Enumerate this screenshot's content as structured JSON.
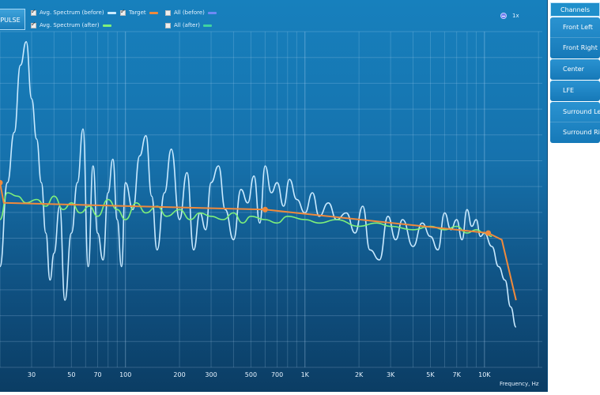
{
  "toolbar": {
    "impulse_label": "PULSE"
  },
  "legend": [
    {
      "label": "Avg. Spectrum (before)",
      "checked": true,
      "color": "#c9eaff"
    },
    {
      "label": "Target",
      "checked": true,
      "color": "#f08a3c"
    },
    {
      "label": "All (before)",
      "checked": false,
      "color": "#6f8af5"
    },
    {
      "label": "Avg. Spectrum (after)",
      "checked": true,
      "color": "#7ef07a"
    },
    {
      "label": "All (after)",
      "checked": false,
      "color": "#3fd3a0"
    }
  ],
  "zoom": {
    "label": "1x"
  },
  "channels": {
    "header": "Channels",
    "groups": [
      [
        "Front Left",
        "Front Right"
      ],
      [
        "Center"
      ],
      [
        "LFE"
      ],
      [
        "Surround Left",
        "Surround Right"
      ]
    ]
  },
  "chart_data": {
    "type": "line",
    "xlabel": "Frequency, Hz",
    "x_scale": "log",
    "xlim": [
      20,
      21000
    ],
    "x_ticks": [
      "30",
      "50",
      "70",
      "100",
      "200",
      "300",
      "500",
      "700",
      "1K",
      "2K",
      "3K",
      "5K",
      "7K",
      "10K"
    ],
    "x_tick_values": [
      30,
      50,
      70,
      100,
      200,
      300,
      500,
      700,
      1000,
      2000,
      3000,
      5000,
      7000,
      10000
    ],
    "ylim": [
      0,
      1
    ],
    "grid": true,
    "series": [
      {
        "name": "Target",
        "color": "#f08a3c",
        "x": [
          20,
          21,
          600,
          10500,
          12500,
          15000
        ],
        "y": [
          0.55,
          0.49,
          0.47,
          0.4,
          0.38,
          0.2
        ]
      },
      {
        "name": "Avg. Spectrum (after)",
        "color": "#7ef07a",
        "x": [
          20,
          22,
          25,
          28,
          32,
          36,
          40,
          45,
          50,
          56,
          63,
          70,
          80,
          90,
          100,
          115,
          130,
          150,
          170,
          200,
          230,
          260,
          300,
          350,
          400,
          450,
          500,
          600,
          700,
          800,
          1000,
          1200,
          1500,
          2000,
          2500,
          3000,
          4000,
          5000,
          6000,
          7000,
          8000,
          9000,
          10000,
          11000
        ],
        "y": [
          0.44,
          0.52,
          0.51,
          0.49,
          0.5,
          0.48,
          0.51,
          0.47,
          0.49,
          0.46,
          0.48,
          0.45,
          0.5,
          0.47,
          0.44,
          0.49,
          0.46,
          0.48,
          0.45,
          0.47,
          0.44,
          0.46,
          0.45,
          0.44,
          0.46,
          0.43,
          0.45,
          0.44,
          0.43,
          0.45,
          0.44,
          0.43,
          0.44,
          0.42,
          0.43,
          0.42,
          0.41,
          0.42,
          0.41,
          0.42,
          0.4,
          0.41,
          0.4,
          0.39
        ]
      },
      {
        "name": "Avg. Spectrum (before)",
        "color": "#c9eaff",
        "x": [
          20,
          22,
          24,
          26,
          28,
          30,
          32,
          34,
          36,
          38,
          40,
          43,
          46,
          50,
          54,
          58,
          62,
          66,
          70,
          75,
          80,
          85,
          90,
          95,
          100,
          110,
          120,
          130,
          140,
          150,
          165,
          180,
          200,
          220,
          240,
          260,
          280,
          300,
          330,
          360,
          400,
          440,
          480,
          520,
          560,
          600,
          650,
          700,
          760,
          820,
          900,
          1000,
          1100,
          1200,
          1350,
          1500,
          1700,
          1900,
          2100,
          2300,
          2600,
          2900,
          3200,
          3500,
          4000,
          4500,
          5000,
          5500,
          6000,
          6500,
          7000,
          7500,
          8000,
          8500,
          9000,
          9500,
          10000,
          11000,
          12000,
          13000,
          14000,
          15000
        ],
        "y": [
          0.3,
          0.55,
          0.7,
          0.9,
          0.97,
          0.8,
          0.68,
          0.55,
          0.4,
          0.26,
          0.34,
          0.48,
          0.2,
          0.4,
          0.55,
          0.71,
          0.3,
          0.6,
          0.4,
          0.32,
          0.52,
          0.62,
          0.44,
          0.3,
          0.55,
          0.47,
          0.63,
          0.69,
          0.51,
          0.35,
          0.52,
          0.65,
          0.44,
          0.58,
          0.35,
          0.46,
          0.41,
          0.55,
          0.6,
          0.47,
          0.38,
          0.53,
          0.49,
          0.57,
          0.43,
          0.6,
          0.52,
          0.55,
          0.48,
          0.56,
          0.5,
          0.46,
          0.52,
          0.45,
          0.49,
          0.44,
          0.46,
          0.4,
          0.48,
          0.35,
          0.32,
          0.45,
          0.38,
          0.44,
          0.36,
          0.43,
          0.39,
          0.35,
          0.46,
          0.41,
          0.44,
          0.38,
          0.47,
          0.42,
          0.44,
          0.39,
          0.4,
          0.36,
          0.3,
          0.26,
          0.18,
          0.12
        ]
      }
    ]
  }
}
